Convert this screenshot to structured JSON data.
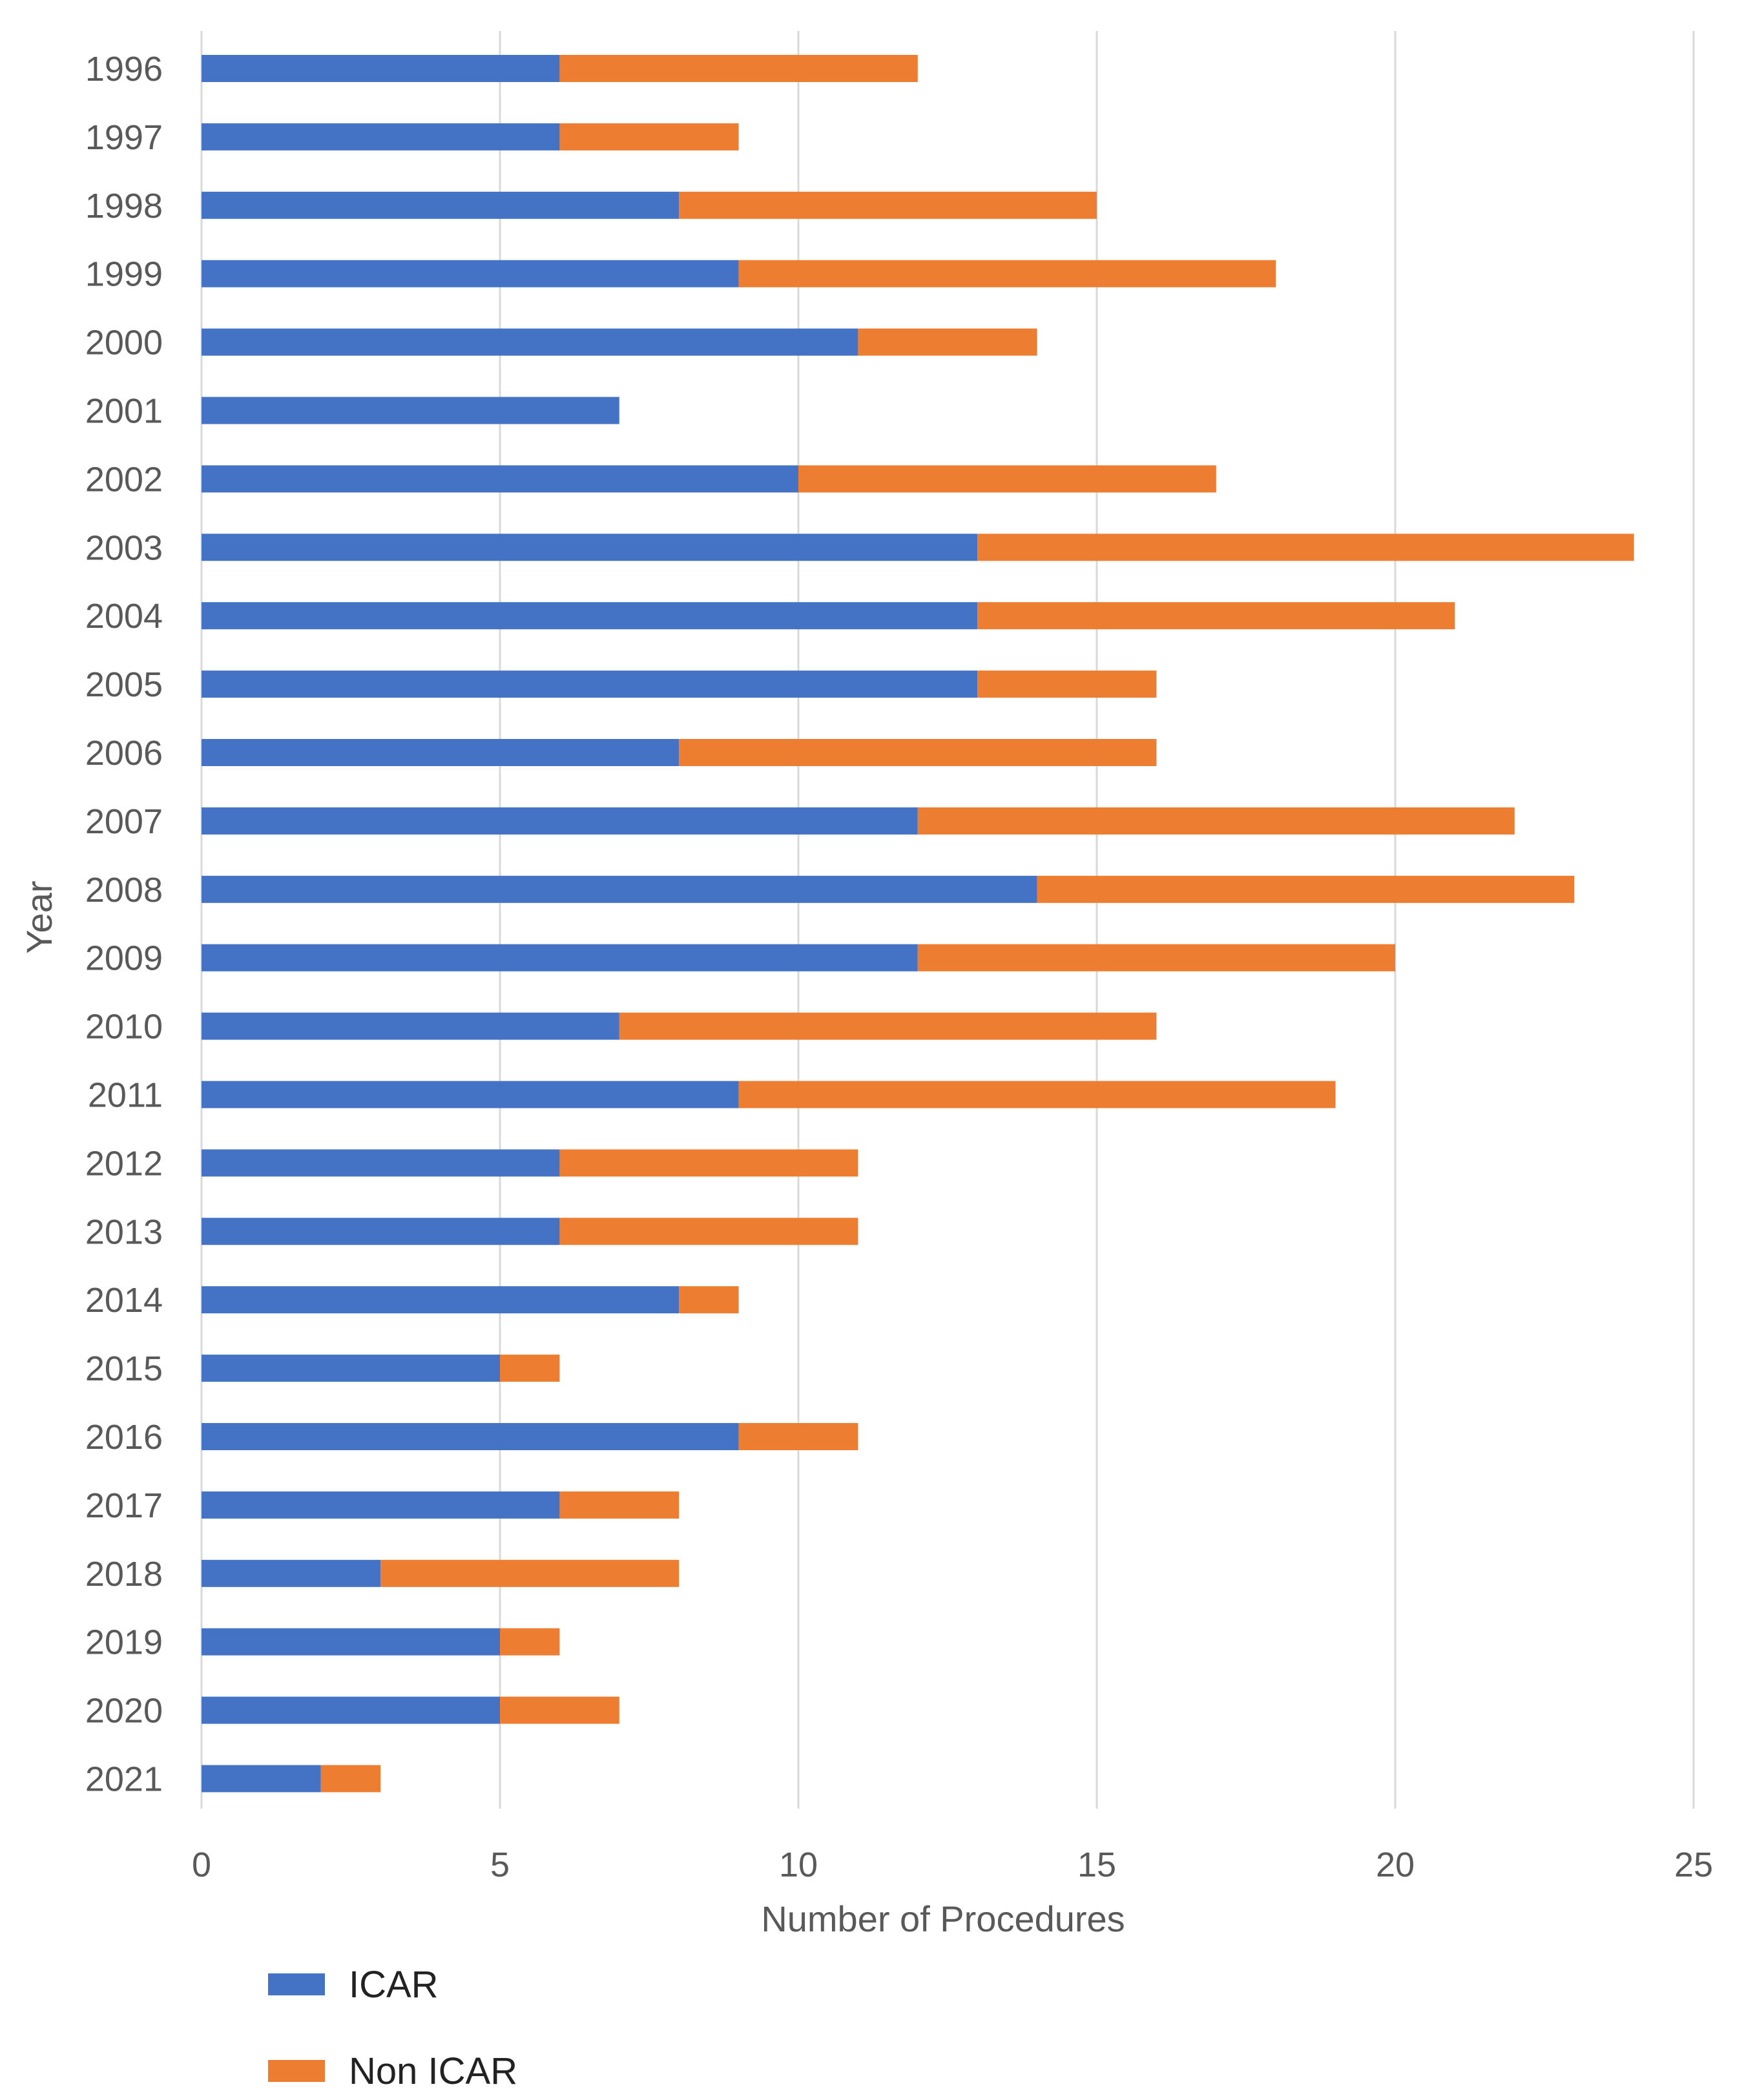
{
  "chart_data": {
    "type": "bar",
    "orientation": "horizontal",
    "stacked": true,
    "title": "",
    "xlabel": "Number of Procedures",
    "ylabel": "Year",
    "xlim": [
      0,
      25
    ],
    "x_ticks": [
      0,
      5,
      10,
      15,
      20,
      25
    ],
    "grid": "vertical",
    "legend": "bottom-left",
    "categories": [
      "1996",
      "1997",
      "1998",
      "1999",
      "2000",
      "2001",
      "2002",
      "2003",
      "2004",
      "2005",
      "2006",
      "2007",
      "2008",
      "2009",
      "2010",
      "2011",
      "2012",
      "2013",
      "2014",
      "2015",
      "2016",
      "2017",
      "2018",
      "2019",
      "2020",
      "2021"
    ],
    "series": [
      {
        "name": "ICAR",
        "color": "#4472C4",
        "values": [
          6,
          6,
          8,
          9,
          11,
          7,
          10,
          13,
          13,
          13,
          8,
          12,
          14,
          12,
          7,
          9,
          6,
          6,
          8,
          5,
          9,
          6,
          3,
          5,
          5,
          2
        ]
      },
      {
        "name": "Non ICAR",
        "color": "#ED7D31",
        "values": [
          6,
          3,
          7,
          9,
          3,
          0,
          7,
          11,
          8,
          3,
          8,
          10,
          9,
          8,
          9,
          10,
          5,
          5,
          1,
          1,
          2,
          2,
          5,
          1,
          2,
          1
        ]
      }
    ]
  }
}
